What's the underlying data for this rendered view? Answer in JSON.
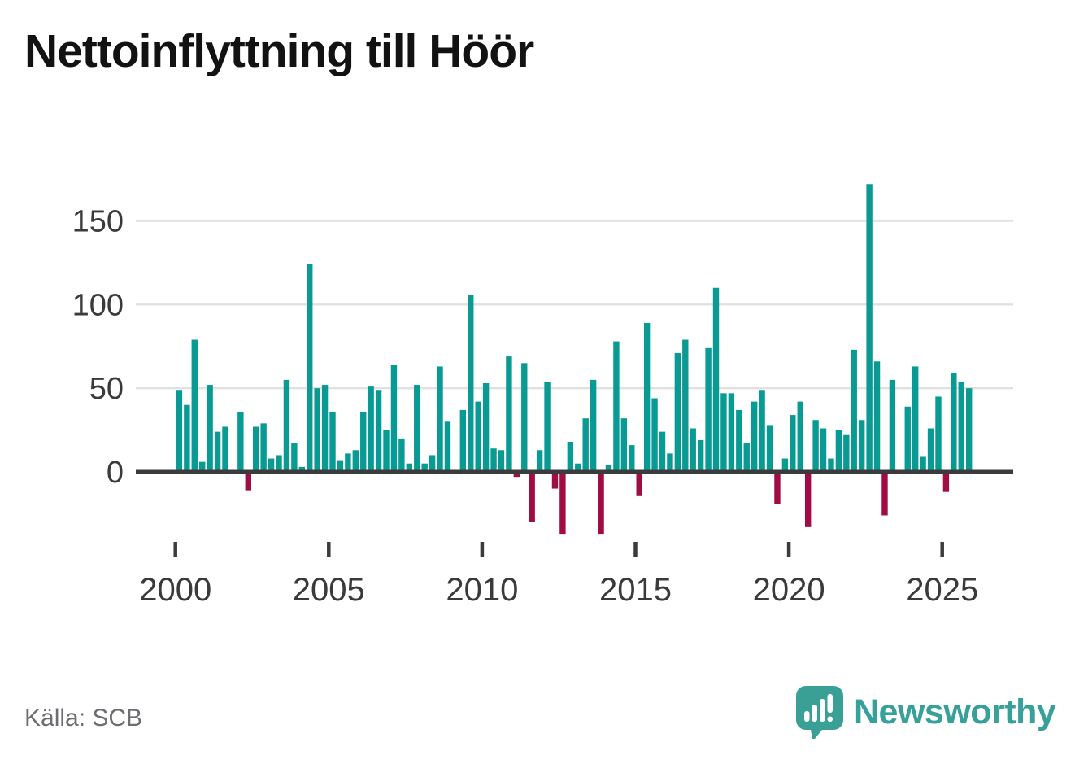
{
  "branding": {
    "name": "Newsworthy",
    "logo_icon": "speech-bubble-bar-chart-icon",
    "logo_color": "#3aa096"
  },
  "chart_data": {
    "type": "bar",
    "title": "Nettoinflyttning till Höör",
    "source": "Källa: SCB",
    "frequency": "quarterly",
    "start": "2000-Q1",
    "end": "2025-Q4",
    "xlabel": "",
    "ylabel": "",
    "y_ticks": [
      0,
      50,
      100,
      150
    ],
    "x_ticks": [
      2000,
      2005,
      2010,
      2015,
      2020,
      2025
    ],
    "ylim": [
      -45,
      180
    ],
    "grid": "horizontal",
    "positive_color": "#099b93",
    "negative_color": "#a00d42",
    "axis_color": "#3b3b3b",
    "grid_color": "#e1e1e1",
    "tick_label_color": "#3a3a3a",
    "values_by_year": [
      {
        "year": 2000,
        "values": [
          49,
          40,
          79,
          6
        ]
      },
      {
        "year": 2001,
        "values": [
          52,
          24,
          27,
          0
        ]
      },
      {
        "year": 2002,
        "values": [
          36,
          -11,
          27,
          29
        ]
      },
      {
        "year": 2003,
        "values": [
          8,
          10,
          55,
          17
        ]
      },
      {
        "year": 2004,
        "values": [
          3,
          124,
          50,
          52
        ]
      },
      {
        "year": 2005,
        "values": [
          36,
          7,
          11,
          13
        ]
      },
      {
        "year": 2006,
        "values": [
          36,
          51,
          49,
          25
        ]
      },
      {
        "year": 2007,
        "values": [
          64,
          20,
          5,
          52
        ]
      },
      {
        "year": 2008,
        "values": [
          5,
          10,
          63,
          30
        ]
      },
      {
        "year": 2009,
        "values": [
          1,
          37,
          106,
          42
        ]
      },
      {
        "year": 2010,
        "values": [
          53,
          14,
          13,
          69
        ]
      },
      {
        "year": 2011,
        "values": [
          -3,
          65,
          -30,
          13
        ]
      },
      {
        "year": 2012,
        "values": [
          54,
          -10,
          -37,
          18
        ]
      },
      {
        "year": 2013,
        "values": [
          5,
          32,
          55,
          -37
        ]
      },
      {
        "year": 2014,
        "values": [
          4,
          78,
          32,
          16
        ]
      },
      {
        "year": 2015,
        "values": [
          -14,
          89,
          44,
          24
        ]
      },
      {
        "year": 2016,
        "values": [
          11,
          71,
          79,
          26
        ]
      },
      {
        "year": 2017,
        "values": [
          19,
          74,
          110,
          47
        ]
      },
      {
        "year": 2018,
        "values": [
          47,
          37,
          17,
          42
        ]
      },
      {
        "year": 2019,
        "values": [
          49,
          28,
          -19,
          8
        ]
      },
      {
        "year": 2020,
        "values": [
          34,
          42,
          -33,
          31
        ]
      },
      {
        "year": 2021,
        "values": [
          26,
          8,
          25,
          22
        ]
      },
      {
        "year": 2022,
        "values": [
          73,
          31,
          172,
          66
        ]
      },
      {
        "year": 2023,
        "values": [
          -26,
          55,
          0,
          39
        ]
      },
      {
        "year": 2024,
        "values": [
          63,
          9,
          26,
          45
        ]
      },
      {
        "year": 2025,
        "values": [
          -12,
          59,
          54,
          50
        ]
      }
    ]
  }
}
